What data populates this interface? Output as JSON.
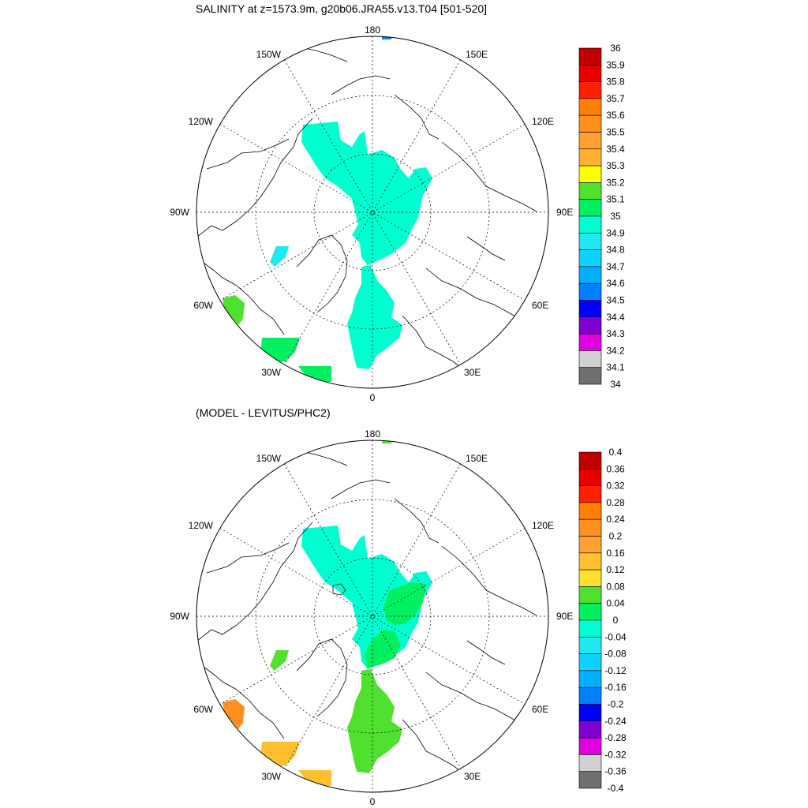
{
  "panels": [
    {
      "title": "SALINITY at z=1573.9m, g20b06.JRA55.v13.T04 [501-520]",
      "lon_labels": [
        "180",
        "150E",
        "120E",
        "90E",
        "60E",
        "30E",
        "0",
        "30W",
        "60W",
        "90W",
        "120W",
        "150W"
      ],
      "colorbar": {
        "labels": [
          "36",
          "35.9",
          "35.8",
          "35.7",
          "35.6",
          "35.5",
          "35.4",
          "35.3",
          "35.2",
          "35.1",
          "35",
          "34.9",
          "34.8",
          "34.7",
          "34.6",
          "34.5",
          "34.4",
          "34.3",
          "34.2",
          "34.1",
          "34"
        ],
        "colors": [
          "#c00000",
          "#e60000",
          "#ff2000",
          "#ff8000",
          "#ff9020",
          "#ffa030",
          "#ffb030",
          "#ffff00",
          "#50e030",
          "#00f060",
          "#00ffd0",
          "#20e8f0",
          "#10d0ff",
          "#00b0ff",
          "#0080ff",
          "#0000ff",
          "#8000d0",
          "#e000e0",
          "#d0d0d0",
          "#707070"
        ]
      }
    },
    {
      "title": "(MODEL - LEVITUS/PHC2)",
      "lon_labels": [
        "180",
        "150E",
        "120E",
        "90E",
        "60E",
        "30E",
        "0",
        "30W",
        "60W",
        "90W",
        "120W",
        "150W"
      ],
      "colorbar": {
        "labels": [
          "0.4",
          "0.36",
          "0.32",
          "0.28",
          "0.24",
          "0.2",
          "0.16",
          "0.12",
          "0.08",
          "0.04",
          "0",
          "-0.04",
          "-0.08",
          "-0.12",
          "-0.16",
          "-0.2",
          "-0.24",
          "-0.28",
          "-0.32",
          "-0.36",
          "-0.4"
        ],
        "colors": [
          "#c00000",
          "#e60000",
          "#ff2000",
          "#ff8000",
          "#ff9020",
          "#ffa030",
          "#ffc030",
          "#ffe030",
          "#50e030",
          "#00f060",
          "#00ffd0",
          "#20e8f0",
          "#10d0ff",
          "#00b0ff",
          "#0080ff",
          "#0000ff",
          "#8000d0",
          "#e000e0",
          "#d0d0d0",
          "#707070"
        ]
      }
    }
  ]
}
